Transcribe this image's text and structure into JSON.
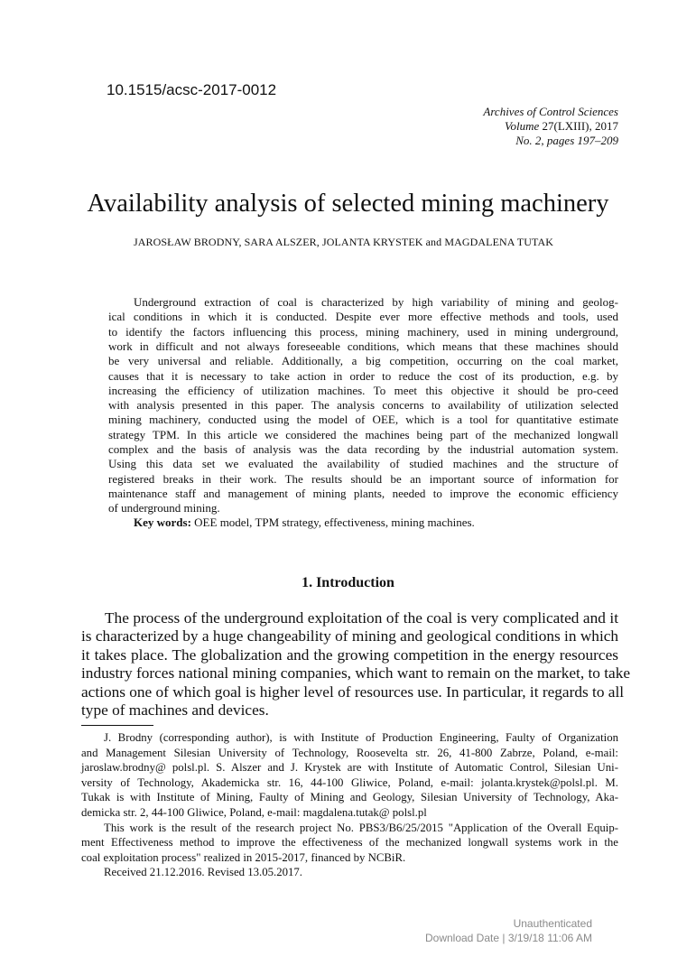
{
  "doi": "10.1515/acsc-2017-0012",
  "journal": {
    "name": "Archives of Control Sciences",
    "volume_label": "Volume",
    "volume": "27(LXIII), 2017",
    "issue": "No. 2, pages 197–209"
  },
  "title": "Availability analysis of selected mining machinery",
  "authors": "JAROSŁAW BRODNY, SARA ALSZER, JOLANTA KRYSTEK and MAGDALENA TUTAK",
  "abstract_lines": [
    "Underground extraction of coal is characterized by high variability of mining and geolog-",
    "ical conditions in which it is conducted. Despite ever more effective methods and tools, used",
    "to identify the factors influencing this process, mining machinery, used in mining underground,",
    "work in difficult and not always foreseeable conditions, which means that these machines should",
    "be very universal and reliable. Additionally, a big competition, occurring on the coal market,",
    "causes that it is necessary to take action in order to reduce the cost of its production, e.g. by",
    "increasing the efficiency of utilization machines. To meet this objective it should be pro-ceed",
    "with analysis presented in this paper. The analysis concerns to availability of utilization selected",
    "mining machinery, conducted using the model of OEE, which is a tool for quantitative estimate",
    "strategy TPM. In this article we considered the machines being part of the mechanized longwall",
    "complex and the basis of analysis was the data recording by the industrial automation system.",
    "Using this data set we evaluated the availability of studied machines and the structure of",
    "registered breaks in their work. The results should be an important source of information for",
    "maintenance staff and management of mining plants, needed to improve the economic efficiency",
    "of underground mining."
  ],
  "keywords_label": "Key words:",
  "keywords": "OEE model, TPM strategy, effectiveness, mining machines.",
  "section_heading": "1.   Introduction",
  "intro_lines": [
    "The process of the underground exploitation of the coal is very complicated and it",
    "is characterized by a huge changeability of mining and geological conditions in which",
    "it takes place. The globalization and the growing competition in the energy resources",
    "industry forces national mining companies, which want to remain on the market, to take",
    "actions one of which goal is higher level of resources use. In particular, it regards to all",
    "type of machines and devices."
  ],
  "footnote_lines": [
    "J. Brodny (corresponding author), is with Institute of Production Engineering, Faulty of Organization",
    "and Management Silesian University of Technology, Roosevelta str. 26, 41-800 Zabrze, Poland, e-mail:",
    "jaroslaw.brodny@ polsl.pl. S. Alszer and J. Krystek are with Institute of Automatic Control, Silesian Uni-",
    "versity of Technology, Akademicka str. 16, 44-100 Gliwice, Poland, e-mail: jolanta.krystek@polsl.pl. M.",
    "Tukak is with Institute of Mining, Faulty of Mining and Geology, Silesian University of Technology, Aka-",
    "demicka str. 2, 44-100 Gliwice, Poland, e-mail: magdalena.tutak@ polsl.pl",
    "This work is the result of the research project No. PBS3/B6/25/2015 \"Application of the Overall Equip-",
    "ment Effectiveness method to improve the effectiveness of the mechanized longwall systems work in the",
    "coal exploitation process\" realized in 2015-2017, financed by NCBiR.",
    "Received 21.12.2016. Revised 13.05.2017."
  ],
  "watermark": {
    "line1": "Unauthenticated",
    "line2": "Download Date | 3/19/18 11:06 AM"
  }
}
